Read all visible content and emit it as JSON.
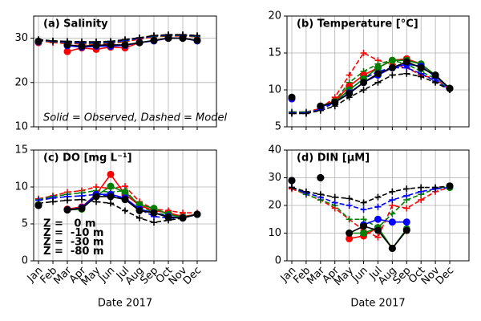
{
  "chart_data": [
    {
      "type": "line",
      "title": "(a) Salinity",
      "annotation": "Solid = Observed, Dashed = Model",
      "categories": [
        "Jan",
        "Feb",
        "Mar",
        "Apr",
        "May",
        "Jun",
        "Jul",
        "Aug",
        "Sep",
        "Oct",
        "Nov",
        "Dec"
      ],
      "ylim": [
        10,
        35
      ],
      "yticks": [
        10,
        20,
        30
      ],
      "grid": true,
      "series": [
        {
          "color": "red",
          "values": [
            29,
            null,
            27,
            27.8,
            27.5,
            28,
            27.8,
            29,
            29.5,
            30,
            30,
            29.5
          ],
          "model_values": [
            29.5,
            29,
            28.8,
            28.7,
            28.6,
            28.8,
            29.2,
            29.8,
            30.3,
            30.5,
            30.5,
            30.3
          ]
        },
        {
          "color": "green",
          "values": [
            29.2,
            null,
            28.5,
            28,
            28.2,
            28.3,
            28.4,
            29,
            29.5,
            30,
            30,
            29.5
          ],
          "model_values": [
            29.6,
            29.2,
            29,
            28.9,
            28.8,
            29,
            29.4,
            30,
            30.4,
            30.6,
            30.6,
            30.4
          ]
        },
        {
          "color": "blue",
          "values": [
            29.2,
            null,
            28.3,
            28,
            28.2,
            28.2,
            28.4,
            29,
            29.4,
            30,
            30,
            29.4
          ],
          "model_values": [
            29.6,
            29.3,
            29.1,
            29,
            29,
            29.1,
            29.5,
            30,
            30.5,
            30.7,
            30.7,
            30.5
          ]
        },
        {
          "color": "black",
          "values": [
            29.3,
            null,
            28.5,
            28.2,
            28.4,
            28.5,
            28.5,
            29,
            29.5,
            30,
            30,
            29.5
          ],
          "model_values": [
            29.7,
            29.4,
            29.3,
            29.2,
            29.2,
            29.3,
            29.7,
            30.1,
            30.6,
            30.8,
            30.8,
            30.6
          ]
        }
      ]
    },
    {
      "type": "line",
      "title": "(b) Temperature [°C]",
      "categories": [
        "Jan",
        "Feb",
        "Mar",
        "Apr",
        "May",
        "Jun",
        "Jul",
        "Aug",
        "Sep",
        "Oct",
        "Nov",
        "Dec"
      ],
      "ylim": [
        5,
        20
      ],
      "yticks": [
        5,
        10,
        15,
        20
      ],
      "grid": true,
      "series": [
        {
          "color": "red",
          "values": [
            8.8,
            null,
            7.8,
            8.5,
            10.5,
            12,
            13,
            14,
            14.2,
            13.5,
            12,
            10.2
          ],
          "model_values": [
            7,
            7,
            7.5,
            9,
            12,
            15,
            14,
            13.5,
            13,
            12,
            11.5,
            10
          ]
        },
        {
          "color": "green",
          "values": [
            9,
            null,
            7.8,
            8.4,
            10,
            11.5,
            13,
            14,
            14,
            13.5,
            12,
            10.2
          ],
          "model_values": [
            7,
            7,
            7.3,
            8.5,
            11,
            12.5,
            13.5,
            14,
            13.5,
            12.5,
            11.5,
            10
          ]
        },
        {
          "color": "blue",
          "values": [
            8.8,
            null,
            7.7,
            8.3,
            9.6,
            11,
            12,
            13,
            13.5,
            13.2,
            11.8,
            10.2
          ],
          "model_values": [
            6.9,
            6.9,
            7.3,
            8.3,
            10,
            11.5,
            12.5,
            13,
            13,
            12.2,
            11.2,
            10
          ]
        },
        {
          "color": "black",
          "values": [
            9,
            null,
            7.8,
            8.3,
            9.5,
            11,
            12.2,
            13,
            13.8,
            13,
            12,
            10.2
          ],
          "model_values": [
            6.8,
            6.8,
            7.2,
            7.8,
            9,
            10,
            11,
            12,
            12.2,
            11.8,
            11,
            10
          ]
        }
      ]
    },
    {
      "type": "line",
      "title": "(c) DO [mg L⁻¹]",
      "x_label": "Date 2017",
      "categories": [
        "Jan",
        "Feb",
        "Mar",
        "Apr",
        "May",
        "Jun",
        "Jul",
        "Aug",
        "Sep",
        "Oct",
        "Nov",
        "Dec"
      ],
      "ylim": [
        0,
        15
      ],
      "yticks": [
        0,
        5,
        10,
        15
      ],
      "grid": true,
      "series": [
        {
          "name": "Z =   0 m",
          "color": "red",
          "values": [
            7.5,
            null,
            7,
            7.3,
            9,
            11.7,
            9,
            7.5,
            6.8,
            6.5,
            6,
            6.3
          ],
          "model_values": [
            8.4,
            8.8,
            9.3,
            9.5,
            10,
            9.8,
            10.1,
            8,
            7,
            6.8,
            6.5,
            6.5
          ]
        },
        {
          "name": "Z =  -10 m",
          "color": "green",
          "values": [
            7.6,
            null,
            6.9,
            7,
            8.8,
            10.1,
            9.3,
            7.6,
            7.1,
            6.3,
            5.9,
            6.3
          ],
          "model_values": [
            8.3,
            8.7,
            9,
            9.2,
            9.5,
            9.3,
            9.5,
            7.5,
            6.5,
            6.2,
            6,
            6.3
          ]
        },
        {
          "name": "Z =  -30 m",
          "color": "blue",
          "values": [
            7.5,
            null,
            6.9,
            7.2,
            9,
            9,
            8.5,
            7,
            6.5,
            6,
            5.8,
            6.3
          ],
          "model_values": [
            8.2,
            8.5,
            8.7,
            8.8,
            9,
            8.8,
            8.5,
            7,
            6,
            5.8,
            5.8,
            6.3
          ]
        },
        {
          "name": "Z =  -80 m",
          "color": "black",
          "values": [
            7.5,
            null,
            6.9,
            7.1,
            8.7,
            8.7,
            8.3,
            6.8,
            6.5,
            5.9,
            5.8,
            6.3
          ],
          "model_values": [
            7.8,
            8,
            8.2,
            8.3,
            8,
            7.8,
            6.8,
            5.8,
            5.2,
            5.5,
            5.8,
            6.3
          ]
        }
      ]
    },
    {
      "type": "line",
      "title": "(d) DIN  [μM]",
      "x_label": "Date 2017",
      "categories": [
        "Jan",
        "Feb",
        "Mar",
        "Apr",
        "May",
        "Jun",
        "Jul",
        "Aug",
        "Sep",
        "Oct",
        "Nov",
        "Dec"
      ],
      "ylim": [
        0,
        40
      ],
      "yticks": [
        0,
        10,
        20,
        30,
        40
      ],
      "grid": true,
      "series": [
        {
          "color": "red",
          "values": [
            29,
            null,
            30,
            null,
            8,
            9,
            12,
            4.5,
            11,
            null,
            null,
            27
          ],
          "model_values": [
            26,
            24,
            22,
            19,
            15,
            11,
            8.5,
            20,
            19,
            22,
            25,
            26.5
          ]
        },
        {
          "color": "green",
          "values": [
            29,
            null,
            30,
            null,
            10,
            10,
            12,
            4.5,
            11.5,
            null,
            null,
            26.5
          ],
          "model_values": [
            26.5,
            24,
            22,
            20,
            15,
            15,
            12,
            17,
            22,
            24,
            26,
            27
          ]
        },
        {
          "color": "blue",
          "values": [
            29,
            null,
            30,
            null,
            null,
            13,
            15,
            14,
            14,
            null,
            null,
            27
          ],
          "model_values": [
            26.5,
            24.5,
            23,
            21,
            20,
            18.5,
            19.5,
            22,
            23.5,
            25,
            26,
            26.5
          ]
        },
        {
          "color": "black",
          "values": [
            29,
            null,
            30,
            null,
            10,
            12.5,
            11,
            4.5,
            11,
            null,
            null,
            27
          ],
          "model_values": [
            26.5,
            25,
            24,
            23,
            22.5,
            21,
            23,
            25,
            26,
            26.5,
            26.5,
            27
          ]
        }
      ]
    }
  ]
}
